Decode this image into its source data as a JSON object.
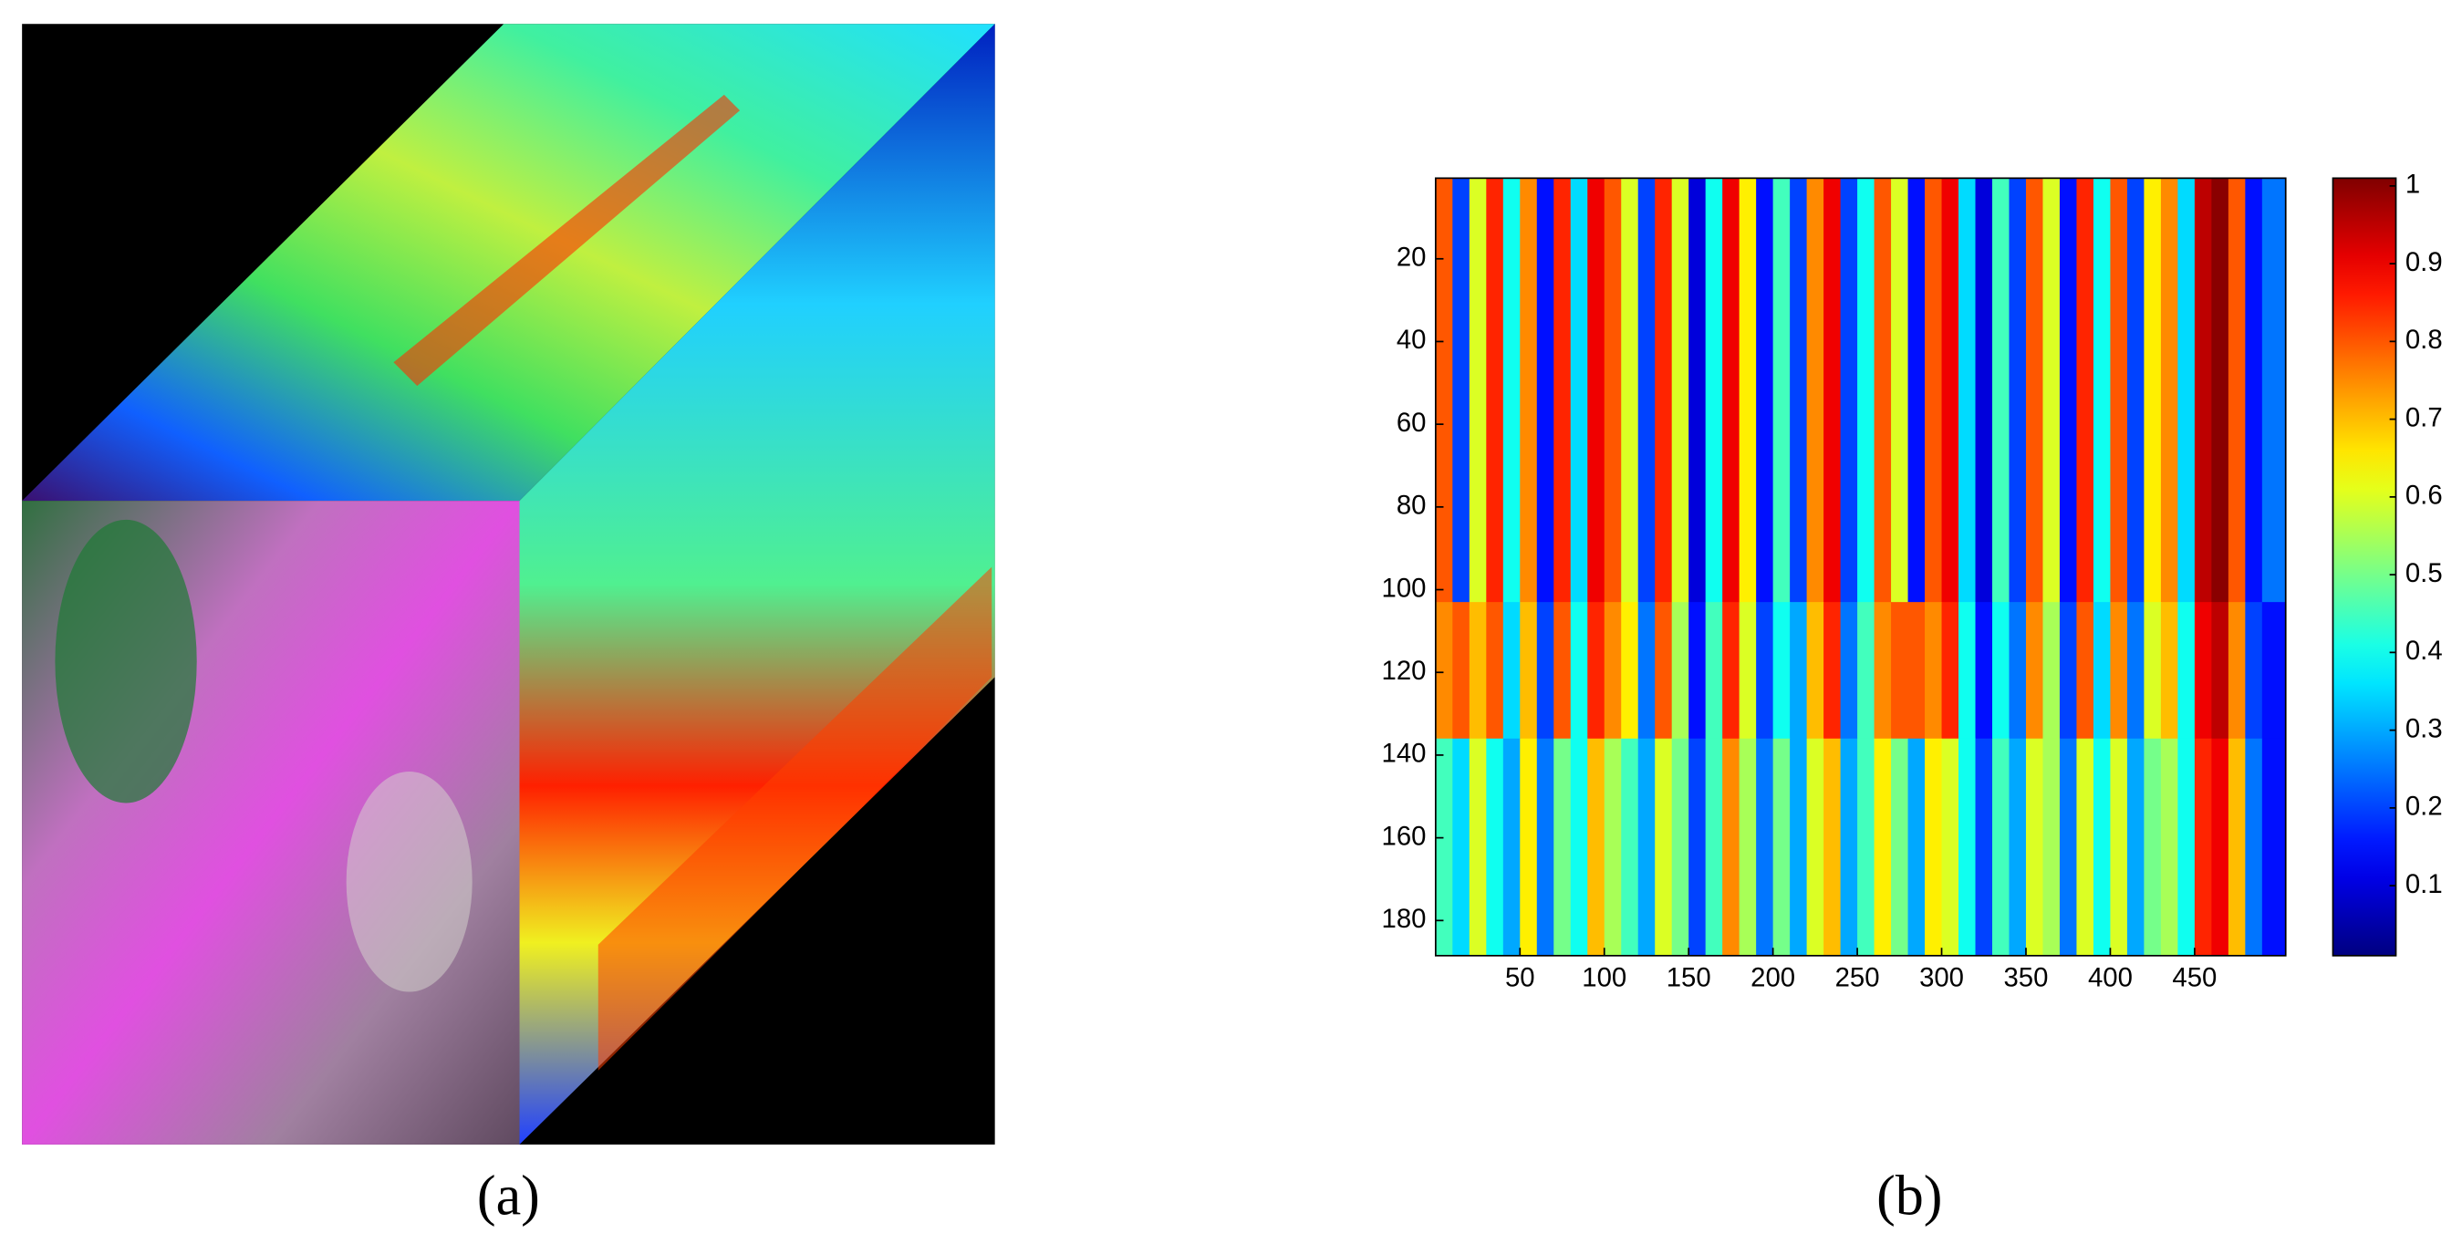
{
  "figure": {
    "panel_a_label": "(a)",
    "panel_b_label": "(b)"
  },
  "chart_data": {
    "type": "heatmap",
    "colormap": "jet",
    "y_inverted": true,
    "x_bins": [
      0,
      10,
      20,
      30,
      40,
      50,
      60,
      70,
      80,
      90,
      100,
      110,
      120,
      130,
      140,
      150,
      160,
      170,
      180,
      190,
      200,
      210,
      220,
      230,
      240,
      250,
      260,
      270,
      280,
      290,
      300,
      310,
      320,
      330,
      340,
      350,
      360,
      370,
      380,
      390,
      400,
      410,
      420,
      430,
      440,
      450,
      460,
      470,
      480,
      490,
      504
    ],
    "y_bins": [
      0.5,
      103,
      136,
      188.5
    ],
    "values": [
      [
        0.8,
        0.2,
        0.6,
        0.85,
        0.4,
        0.75,
        0.15,
        0.85,
        0.35,
        0.9,
        0.8,
        0.6,
        0.2,
        0.85,
        0.6,
        0.1,
        0.4,
        0.9,
        0.65,
        0.15,
        0.45,
        0.2,
        0.75,
        0.9,
        0.2,
        0.4,
        0.8,
        0.6,
        0.15,
        0.8,
        0.9,
        0.35,
        0.1,
        0.45,
        0.2,
        0.8,
        0.6,
        0.15,
        0.85,
        0.4,
        0.8,
        0.2,
        0.65,
        0.75,
        0.35,
        0.95,
        1.0,
        0.8,
        0.15,
        0.25
      ],
      [
        0.75,
        0.8,
        0.7,
        0.8,
        0.35,
        0.7,
        0.2,
        0.8,
        0.4,
        0.85,
        0.75,
        0.65,
        0.25,
        0.8,
        0.55,
        0.15,
        0.45,
        0.85,
        0.6,
        0.2,
        0.4,
        0.3,
        0.7,
        0.85,
        0.25,
        0.45,
        0.75,
        0.8,
        0.8,
        0.75,
        0.85,
        0.4,
        0.15,
        0.4,
        0.25,
        0.75,
        0.55,
        0.2,
        0.8,
        0.35,
        0.75,
        0.25,
        0.6,
        0.7,
        0.4,
        0.9,
        0.95,
        0.75,
        0.2,
        0.15
      ],
      [
        0.45,
        0.35,
        0.6,
        0.4,
        0.3,
        0.65,
        0.25,
        0.5,
        0.4,
        0.7,
        0.55,
        0.45,
        0.3,
        0.6,
        0.5,
        0.2,
        0.45,
        0.75,
        0.55,
        0.25,
        0.5,
        0.3,
        0.6,
        0.7,
        0.3,
        0.45,
        0.65,
        0.5,
        0.3,
        0.65,
        0.6,
        0.4,
        0.2,
        0.45,
        0.3,
        0.6,
        0.55,
        0.25,
        0.6,
        0.4,
        0.6,
        0.3,
        0.5,
        0.55,
        0.4,
        0.85,
        0.9,
        0.7,
        0.25,
        0.15
      ]
    ],
    "xlim": [
      0,
      504
    ],
    "ylim": [
      0.5,
      188.5
    ],
    "xticks": [
      50,
      100,
      150,
      200,
      250,
      300,
      350,
      400,
      450
    ],
    "yticks": [
      20,
      40,
      60,
      80,
      100,
      120,
      140,
      160,
      180
    ],
    "clim": [
      0.01,
      1.01
    ],
    "cticks": [
      0.1,
      0.2,
      0.3,
      0.4,
      0.5,
      0.6,
      0.7,
      0.8,
      0.9,
      1
    ]
  }
}
